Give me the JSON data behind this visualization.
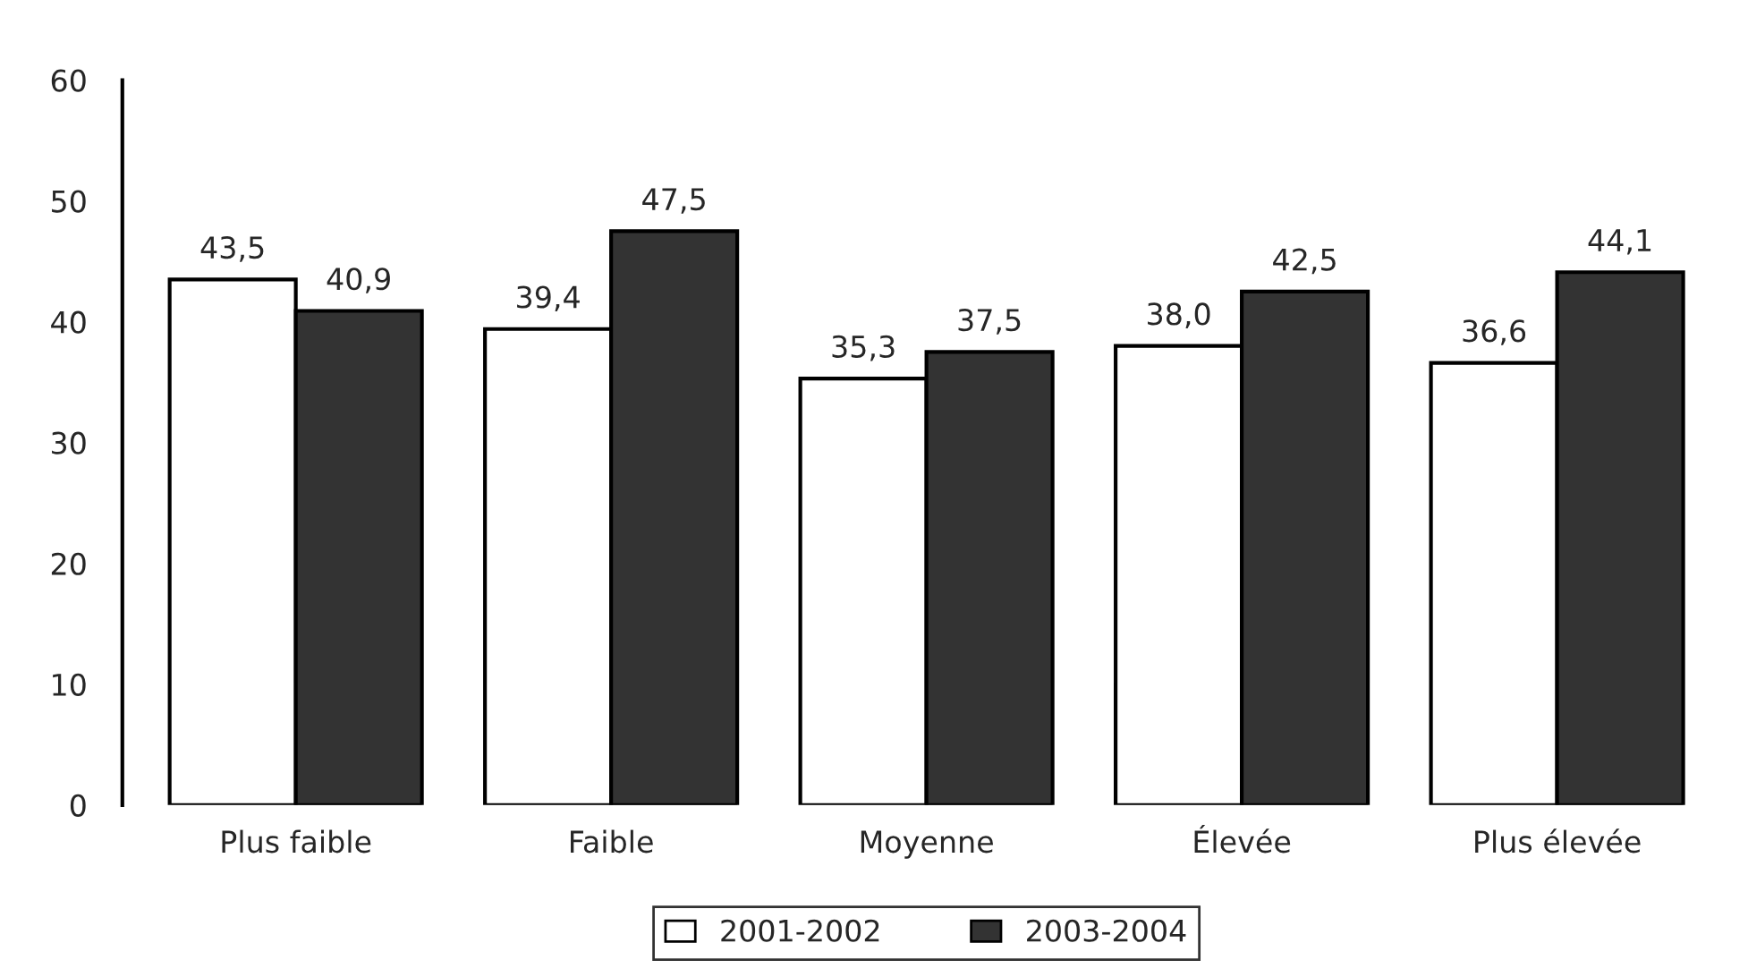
{
  "chart_data": {
    "type": "bar",
    "categories": [
      "Plus faible",
      "Faible",
      "Moyenne",
      "Élevée",
      "Plus élevée"
    ],
    "series": [
      {
        "name": "2001-2002",
        "color": "#ffffff",
        "values": [
          43.5,
          39.4,
          35.3,
          38.0,
          36.6
        ],
        "value_labels": [
          "43,5",
          "39,4",
          "35,3",
          "38,0",
          "36,6"
        ]
      },
      {
        "name": "2003-2004",
        "color": "#333333",
        "values": [
          40.9,
          47.5,
          37.5,
          42.5,
          44.1
        ],
        "value_labels": [
          "40,9",
          "47,5",
          "37,5",
          "42,5",
          "44,1"
        ]
      }
    ],
    "ylim": [
      0,
      60
    ],
    "yticks": [
      0,
      10,
      20,
      30,
      40,
      50,
      60
    ],
    "grid": false,
    "legend": "bottom"
  }
}
